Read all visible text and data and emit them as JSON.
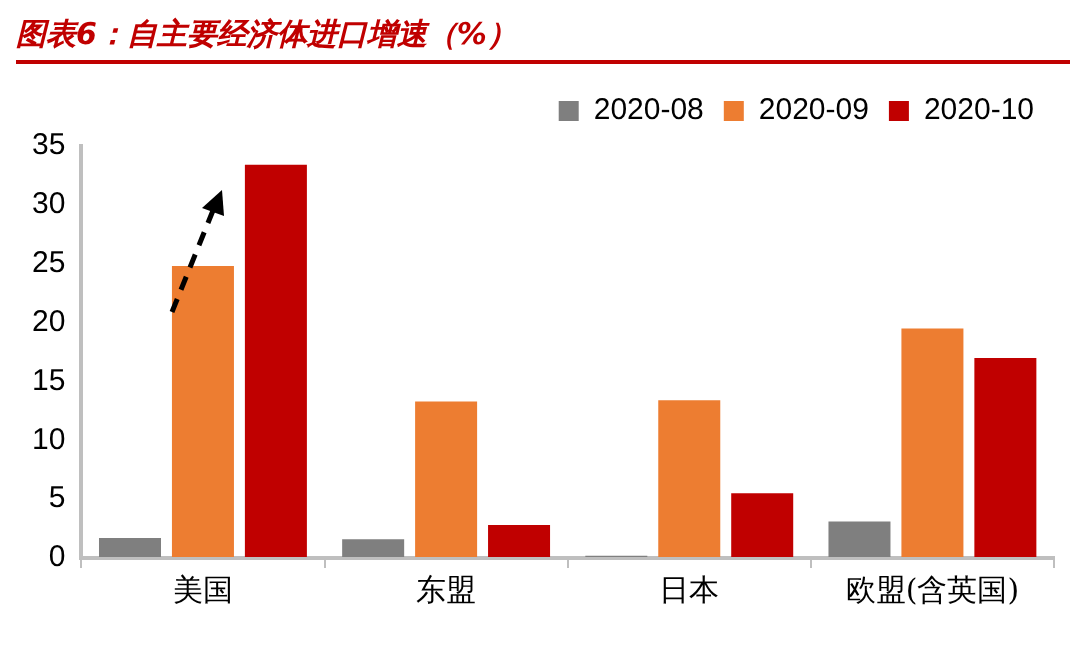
{
  "chart_data": {
    "type": "bar",
    "title": "图表6：自主要经济体进口增速（%）",
    "categories": [
      "美国",
      "东盟",
      "日本",
      "欧盟(含英国)"
    ],
    "series": [
      {
        "name": "2020-08",
        "color": "#7f7f7f",
        "values": [
          1.7,
          1.6,
          0.2,
          3.1
        ]
      },
      {
        "name": "2020-09",
        "color": "#ed7d31",
        "values": [
          24.8,
          13.3,
          13.4,
          19.5
        ]
      },
      {
        "name": "2020-10",
        "color": "#c00000",
        "values": [
          33.4,
          2.8,
          5.5,
          17.0
        ]
      }
    ],
    "ylim": [
      0,
      35
    ],
    "yticks": [
      0,
      5,
      10,
      15,
      20,
      25,
      30,
      35
    ],
    "grid": false,
    "legend": "top right"
  }
}
